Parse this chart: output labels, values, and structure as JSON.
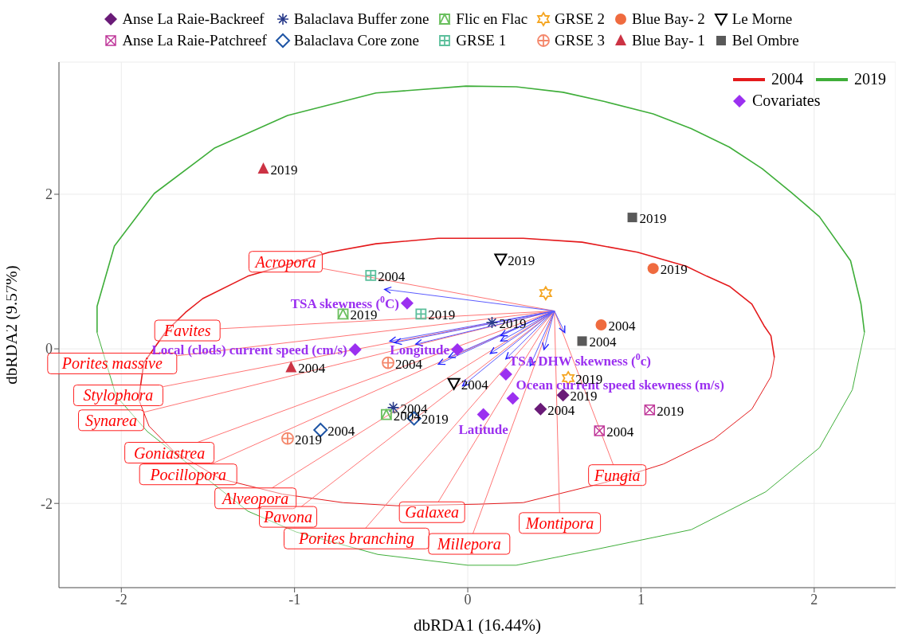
{
  "chart_data": {
    "type": "scatter",
    "xlabel": "dbRDA1 (16.44%)",
    "ylabel": "dbRDA2 (9.57%)",
    "xlim": [
      -2.36,
      2.47
    ],
    "ylim": [
      -3.09,
      3.71
    ],
    "xticks": [
      -2,
      -1,
      0,
      1,
      2
    ],
    "yticks": [
      -2,
      0,
      2
    ],
    "grid": true,
    "legend": "top",
    "series": [
      {
        "type": "line",
        "name": "2004",
        "color": "#e41a1c",
        "x": [
          -1.9,
          -1.87,
          -1.74,
          -1.63,
          -1.53,
          -1.27,
          -1.04,
          -0.8,
          -0.53,
          -0.17,
          0.0,
          0.32,
          0.66,
          0.98,
          1.26,
          1.38,
          1.51,
          1.64,
          1.71,
          1.75,
          1.77
        ],
        "values": [
          -0.65,
          -0.18,
          0.23,
          0.47,
          0.65,
          0.94,
          1.09,
          1.25,
          1.36,
          1.43,
          1.43,
          1.43,
          1.38,
          1.25,
          1.07,
          0.94,
          0.81,
          0.58,
          0.3,
          0.17,
          -0.11
        ]
      },
      {
        "type": "line",
        "color": "#e41a1c",
        "x": [
          -1.9,
          -1.84,
          -1.7,
          -1.43,
          -1.07,
          -0.72,
          -0.41,
          0.06,
          0.32,
          0.79,
          1.13,
          1.42,
          1.64,
          1.75,
          1.77
        ],
        "values": [
          -0.65,
          -1.0,
          -1.32,
          -1.68,
          -1.88,
          -1.99,
          -2.03,
          -2.01,
          -1.99,
          -1.73,
          -1.49,
          -1.17,
          -0.78,
          -0.36,
          -0.11
        ]
      },
      {
        "type": "line",
        "name": "2019",
        "color": "#3fae3a",
        "x": [
          -2.14,
          -2.14,
          -2.04,
          -1.81,
          -1.46,
          -1.04,
          -0.53,
          -0.01,
          0.28,
          0.55,
          0.79,
          1.07,
          1.29,
          1.51,
          1.7,
          1.87,
          2.03,
          2.21,
          2.27,
          2.29
        ],
        "values": [
          0.21,
          0.55,
          1.33,
          2.01,
          2.6,
          3.02,
          3.31,
          3.4,
          3.39,
          3.32,
          3.2,
          3.04,
          2.85,
          2.61,
          2.33,
          2.02,
          1.71,
          1.14,
          0.58,
          0.21
        ]
      },
      {
        "type": "line",
        "color": "#3fae3a",
        "x": [
          -2.14,
          -2.03,
          -1.85,
          -1.27,
          -0.99,
          -0.52,
          0.0,
          0.28,
          0.75,
          1.29,
          1.72,
          2.03,
          2.22,
          2.29
        ],
        "values": [
          0.21,
          -0.61,
          -1.07,
          -2.1,
          -2.37,
          -2.66,
          -2.8,
          -2.8,
          -2.59,
          -2.34,
          -1.85,
          -1.28,
          -0.53,
          0.21
        ]
      },
      {
        "type": "line",
        "color": "#ff7575",
        "x": [
          0.5,
          -0.84
        ],
        "values": [
          0.49,
          1.04
        ]
      },
      {
        "type": "line",
        "color": "#ff7575",
        "x": [
          0.5,
          -1.43
        ],
        "values": [
          0.49,
          0.26
        ]
      },
      {
        "type": "line",
        "color": "#ff7575",
        "x": [
          0.5,
          -1.68
        ],
        "values": [
          0.49,
          -0.09
        ]
      },
      {
        "type": "line",
        "color": "#ff7575",
        "x": [
          0.5,
          -1.76
        ],
        "values": [
          0.49,
          -0.49
        ]
      },
      {
        "type": "line",
        "color": "#ff7575",
        "x": [
          0.5,
          -1.87
        ],
        "values": [
          0.49,
          -0.82
        ]
      },
      {
        "type": "line",
        "color": "#ff7575",
        "x": [
          0.5,
          -1.56
        ],
        "values": [
          0.49,
          -1.21
        ]
      },
      {
        "type": "line",
        "color": "#ff7575",
        "x": [
          0.5,
          -1.48
        ],
        "values": [
          0.49,
          -1.49
        ]
      },
      {
        "type": "line",
        "color": "#ff7575",
        "x": [
          0.5,
          -1.13
        ],
        "values": [
          0.49,
          -1.8
        ]
      },
      {
        "type": "line",
        "color": "#ff7575",
        "x": [
          0.5,
          -0.96
        ],
        "values": [
          0.49,
          -2.04
        ]
      },
      {
        "type": "line",
        "color": "#ff7575",
        "x": [
          0.5,
          -0.59
        ],
        "values": [
          0.49,
          -2.32
        ]
      },
      {
        "type": "line",
        "color": "#ff7575",
        "x": [
          0.5,
          -0.17
        ],
        "values": [
          0.49,
          -1.98
        ]
      },
      {
        "type": "line",
        "color": "#ff7575",
        "x": [
          0.5,
          0.03
        ],
        "values": [
          0.49,
          -2.39
        ]
      },
      {
        "type": "line",
        "color": "#ff7575",
        "x": [
          0.5,
          0.53
        ],
        "values": [
          0.49,
          -2.12
        ]
      },
      {
        "type": "line",
        "color": "#ff7575",
        "x": [
          0.5,
          0.84
        ],
        "values": [
          0.49,
          -1.5
        ]
      },
      {
        "type": "line",
        "color": "#5c5cff",
        "x": [
          0.5,
          -0.48
        ],
        "values": [
          0.49,
          0.77
        ]
      },
      {
        "type": "line",
        "color": "#5c5cff",
        "x": [
          0.5,
          -0.45
        ],
        "values": [
          0.49,
          0.1
        ]
      },
      {
        "type": "line",
        "color": "#5c5cff",
        "x": [
          0.5,
          -0.42
        ],
        "values": [
          0.49,
          0.08
        ]
      },
      {
        "type": "line",
        "color": "#5c5cff",
        "x": [
          0.5,
          -0.3
        ],
        "values": [
          0.49,
          0.06
        ]
      },
      {
        "type": "line",
        "color": "#5c5cff",
        "x": [
          0.5,
          -0.11
        ],
        "values": [
          0.49,
          -0.11
        ]
      },
      {
        "type": "line",
        "color": "#5c5cff",
        "x": [
          0.5,
          -0.17
        ],
        "values": [
          0.49,
          -0.2
        ]
      },
      {
        "type": "line",
        "color": "#5c5cff",
        "x": [
          0.5,
          -0.03
        ],
        "values": [
          0.49,
          -0.48
        ]
      },
      {
        "type": "line",
        "color": "#5c5cff",
        "x": [
          0.5,
          0.19
        ],
        "values": [
          0.49,
          0.17
        ]
      },
      {
        "type": "line",
        "color": "#5c5cff",
        "x": [
          0.5,
          0.19
        ],
        "values": [
          0.49,
          0.1
        ]
      },
      {
        "type": "line",
        "color": "#5c5cff",
        "x": [
          0.5,
          0.13
        ],
        "values": [
          0.49,
          -0.06
        ]
      },
      {
        "type": "line",
        "color": "#5c5cff",
        "x": [
          0.5,
          0.22
        ],
        "values": [
          0.49,
          -0.13
        ]
      },
      {
        "type": "line",
        "color": "#5c5cff",
        "x": [
          0.5,
          0.36
        ],
        "values": [
          0.49,
          -0.22
        ]
      },
      {
        "type": "line",
        "color": "#5c5cff",
        "x": [
          0.5,
          0.44
        ],
        "values": [
          0.49,
          -0.01
        ]
      },
      {
        "type": "line",
        "color": "#5c5cff",
        "x": [
          0.5,
          0.56
        ],
        "values": [
          0.49,
          0.21
        ]
      },
      {
        "name": "Covariates",
        "marker": "diamond",
        "color": "#9b30f0",
        "x": [
          -0.35,
          -0.65,
          -0.06,
          0.22,
          0.26,
          0.09
        ],
        "values": [
          0.59,
          -0.01,
          -0.01,
          -0.33,
          -0.64,
          -0.85
        ]
      },
      {
        "name": "Anse La Raie-Backreef",
        "marker": "diamond",
        "color": "#6a1b78",
        "x": [
          0.42,
          0.55
        ],
        "values": [
          -0.78,
          -0.6
        ]
      },
      {
        "name": "Anse La Raie-Patchreef",
        "color": "#c0399a",
        "x": [
          0.76,
          1.05
        ],
        "values": [
          -1.06,
          -0.79
        ]
      },
      {
        "name": "Balaclava Buffer zone",
        "marker": "cross",
        "color": "#283a8a",
        "x": [
          -0.43,
          0.14
        ],
        "values": [
          -0.76,
          0.34
        ]
      },
      {
        "name": "Balaclava Core zone",
        "marker": "diamond-open",
        "color": "#1f55a5",
        "x": [
          -0.85,
          -0.31
        ],
        "values": [
          -1.05,
          -0.9
        ]
      },
      {
        "name": "Flic en Flac",
        "marker": "square-triangle",
        "color": "#6abf5e",
        "x": [
          -0.47,
          -0.72
        ],
        "values": [
          -0.85,
          0.45
        ]
      },
      {
        "name": "GRSE 1",
        "color": "#5cbf9c",
        "x": [
          -0.56,
          -0.27
        ],
        "values": [
          0.95,
          0.45
        ]
      },
      {
        "name": "GRSE 2",
        "color": "#f5a623",
        "x": [
          0.45,
          0.58
        ],
        "values": [
          0.72,
          -0.38
        ]
      },
      {
        "name": "GRSE 3",
        "color": "#f4876b",
        "x": [
          -0.46,
          -1.04
        ],
        "values": [
          -0.18,
          -1.16
        ]
      },
      {
        "name": "Blue Bay- 2",
        "marker": "circle",
        "color": "#ef6b3f",
        "x": [
          0.77,
          1.07
        ],
        "values": [
          0.31,
          1.04
        ]
      },
      {
        "name": "Blue Bay- 1",
        "marker": "triangle",
        "color": "#cc3344",
        "x": [
          -1.02,
          -1.18
        ],
        "values": [
          -0.24,
          2.33
        ]
      },
      {
        "name": "Le Morne",
        "marker": "triangle-down",
        "color": "#000000",
        "x": [
          -0.08,
          0.19
        ],
        "values": [
          -0.45,
          1.16
        ]
      },
      {
        "name": "Bel Ombre",
        "marker": "square",
        "color": "#595959",
        "x": [
          0.66,
          0.95
        ],
        "values": [
          0.1,
          1.7
        ]
      }
    ],
    "annotations": [
      {
        "text": "Acropora",
        "x": -0.84,
        "y": 1.04
      },
      {
        "text": "Favites",
        "x": -1.43,
        "y": 0.26
      },
      {
        "text": "Porites massive",
        "x": -1.68,
        "y": -0.09
      },
      {
        "text": "Stylophora",
        "x": -1.76,
        "y": -0.49
      },
      {
        "text": "Synarea",
        "x": -1.87,
        "y": -0.82
      },
      {
        "text": "Goniastrea",
        "x": -1.56,
        "y": -1.21
      },
      {
        "text": "Pocillopora",
        "x": -1.48,
        "y": -1.49
      },
      {
        "text": "Alveopora",
        "x": -1.13,
        "y": -1.8
      },
      {
        "text": "Pavona",
        "x": -0.96,
        "y": -2.04
      },
      {
        "text": "Porites branching",
        "x": -0.59,
        "y": -2.32
      },
      {
        "text": "Galaxea",
        "x": -0.17,
        "y": -1.98
      },
      {
        "text": "Millepora",
        "x": 0.03,
        "y": -2.39
      },
      {
        "text": "Montipora",
        "x": 0.53,
        "y": -2.12
      },
      {
        "text": "Fungia",
        "x": 0.84,
        "y": -1.5
      },
      {
        "text": "TSA skewness ($^{0}$C)",
        "x": -0.35,
        "y": 0.59
      },
      {
        "text": "Local (clods) current speed (cm/s)",
        "x": -0.65,
        "y": -0.01
      },
      {
        "text": "Longitude",
        "x": -0.06,
        "y": -0.01
      },
      {
        "text": "TSA DHW skewness ($^{0}$c)",
        "x": 0.22,
        "y": -0.33
      },
      {
        "text": "Ocean current speed skewness (m/s)",
        "x": 0.26,
        "y": -0.64
      },
      {
        "text": "Latitude",
        "x": 0.09,
        "y": -0.85
      },
      {
        "text": "2004",
        "x": 0.42,
        "y": -0.78
      },
      {
        "text": "2019",
        "x": 0.55,
        "y": -0.6
      },
      {
        "text": "2004",
        "x": 0.76,
        "y": -1.06
      },
      {
        "text": "2019",
        "x": 1.05,
        "y": -0.79
      },
      {
        "text": "2004",
        "x": -0.43,
        "y": -0.76
      },
      {
        "text": "2019",
        "x": 0.14,
        "y": 0.34
      },
      {
        "text": "2004",
        "x": -0.85,
        "y": -1.05
      },
      {
        "text": "2019",
        "x": -0.31,
        "y": -0.9
      },
      {
        "text": "2004",
        "x": -0.47,
        "y": -0.85
      },
      {
        "text": "2019",
        "x": -0.72,
        "y": 0.45
      },
      {
        "text": "2004",
        "x": -0.56,
        "y": 0.95
      },
      {
        "text": "2019",
        "x": -0.27,
        "y": 0.45
      },
      {
        "text": "2019",
        "x": 0.58,
        "y": -0.38
      },
      {
        "text": "2004",
        "x": -0.46,
        "y": -0.18
      },
      {
        "text": "2019",
        "x": -1.04,
        "y": -1.16
      },
      {
        "text": "2004",
        "x": 0.77,
        "y": 0.31
      },
      {
        "text": "2019",
        "x": 1.07,
        "y": 1.04
      },
      {
        "text": "2004",
        "x": -1.02,
        "y": -0.24
      },
      {
        "text": "2019",
        "x": -1.18,
        "y": 2.33
      },
      {
        "text": "2004",
        "x": -0.08,
        "y": -0.45
      },
      {
        "text": "2019",
        "x": 0.19,
        "y": 1.16
      },
      {
        "text": "2004",
        "x": 0.66,
        "y": 0.1
      },
      {
        "text": "2019",
        "x": 0.95,
        "y": 1.7
      }
    ]
  }
}
